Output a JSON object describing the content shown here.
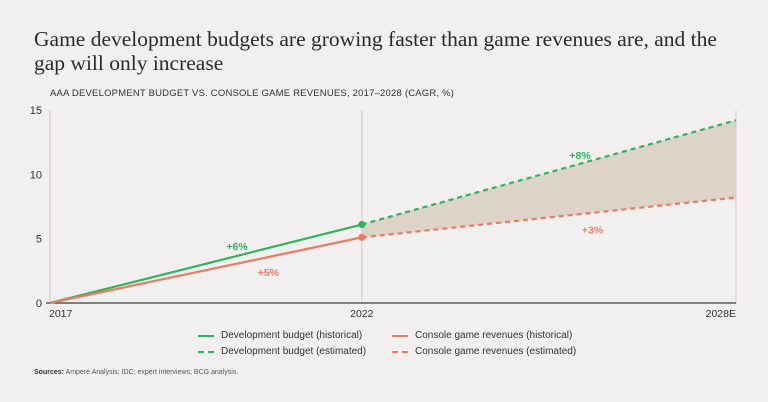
{
  "header": {
    "title": "Game development budgets are growing faster than game revenues are, and the gap will only increase",
    "subtitle": "AAA DEVELOPMENT BUDGET VS. CONSOLE GAME REVENUES, 2017–2028 (CAGR, %)"
  },
  "chart_data": {
    "type": "line",
    "title": "Game development budgets are growing faster than game revenues are, and the gap will only increase",
    "subtitle": "AAA DEVELOPMENT BUDGET VS. CONSOLE GAME REVENUES, 2017–2028 (CAGR, %)",
    "xlabel": "",
    "ylabel": "",
    "x": [
      2017,
      2022,
      2028
    ],
    "x_tick_labels": [
      "2017",
      "2022",
      "2028E"
    ],
    "ylim": [
      0,
      15
    ],
    "y_ticks": [
      0,
      5,
      10,
      15
    ],
    "series": [
      {
        "name": "Development budget (historical)",
        "color": "#2fb45a",
        "style": "solid",
        "x": [
          2017,
          2022
        ],
        "values": [
          0,
          6.1
        ]
      },
      {
        "name": "Development budget (estimated)",
        "color": "#2fb45a",
        "style": "dashed",
        "x": [
          2022,
          2028
        ],
        "values": [
          6.1,
          14.2
        ]
      },
      {
        "name": "Console game revenues (historical)",
        "color": "#ea7c62",
        "style": "solid",
        "x": [
          2017,
          2022
        ],
        "values": [
          0,
          5.1
        ]
      },
      {
        "name": "Console game revenues (estimated)",
        "color": "#ea7c62",
        "style": "dashed",
        "x": [
          2022,
          2028
        ],
        "values": [
          5.1,
          8.2
        ]
      }
    ],
    "annotations": [
      {
        "text": "+6%",
        "x": 2020.0,
        "y": 4.1,
        "color": "#2fb45a"
      },
      {
        "text": "+5%",
        "x": 2020.5,
        "y": 2.1,
        "color": "#ea7c62"
      },
      {
        "text": "+8%",
        "x": 2025.5,
        "y": 11.2,
        "color": "#2fb45a"
      },
      {
        "text": "+3%",
        "x": 2025.7,
        "y": 5.4,
        "color": "#ea7c62"
      }
    ],
    "fill_between": {
      "series_top": "Development budget (estimated)",
      "series_bottom": "Console game revenues (estimated)",
      "color": "#ddd3c6"
    }
  },
  "legend": {
    "items": [
      {
        "label": "Development budget (historical)",
        "color": "#2fb45a",
        "style": "solid"
      },
      {
        "label": "Console game revenues (historical)",
        "color": "#ea7c62",
        "style": "solid"
      },
      {
        "label": "Development budget (estimated)",
        "color": "#2fb45a",
        "style": "dashed"
      },
      {
        "label": "Console game revenues (estimated)",
        "color": "#ea7c62",
        "style": "dashed"
      }
    ]
  },
  "source": {
    "label": "Sources:",
    "text": "Ampere Analysis; IDC; expert interviews; BCG analysis."
  }
}
